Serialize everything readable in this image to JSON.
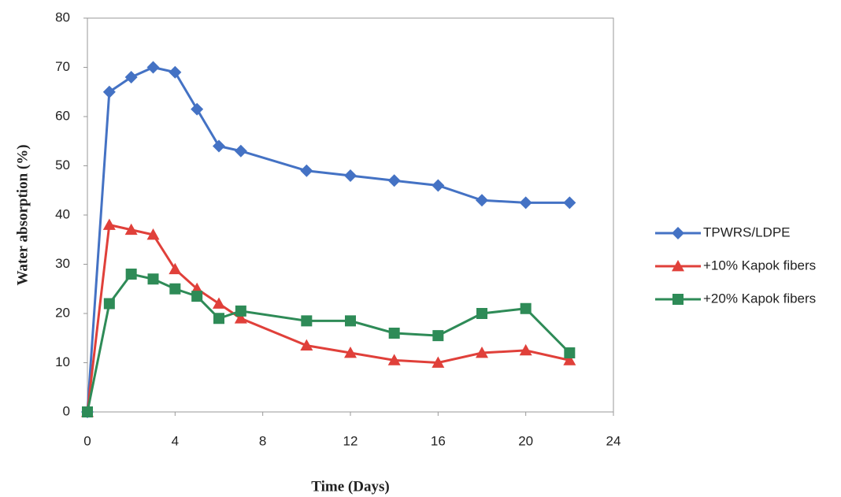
{
  "chart_data": {
    "type": "line",
    "x_label": "Time (Days)",
    "y_label": "Water absorption (%)",
    "x": [
      0,
      1,
      2,
      3,
      4,
      5,
      6,
      7,
      10,
      12,
      14,
      16,
      18,
      20,
      22
    ],
    "series": [
      {
        "name": "TPWRS/LDPE",
        "color": "#4472c4",
        "marker": "diamond",
        "values": [
          0,
          65,
          68,
          70,
          69,
          61.5,
          54,
          53,
          49,
          48,
          47,
          46,
          43,
          42.5,
          42.5
        ]
      },
      {
        "name": "+10% Kapok fibers",
        "color": "#e0403a",
        "marker": "triangle",
        "values": [
          0,
          38,
          37,
          36,
          29,
          25,
          22,
          19,
          13.5,
          12,
          10.5,
          10,
          12,
          12.5,
          10.5
        ]
      },
      {
        "name": "+20% Kapok fibers",
        "color": "#2e8b57",
        "marker": "square",
        "values": [
          0,
          22,
          28,
          27,
          25,
          23.5,
          19,
          20.5,
          18.5,
          18.5,
          16,
          15.5,
          20,
          21,
          12
        ]
      }
    ],
    "xlim": [
      0,
      24
    ],
    "xticks": [
      0,
      4,
      8,
      12,
      16,
      20,
      24
    ],
    "ylim": [
      0,
      80
    ],
    "yticks": [
      0,
      10,
      20,
      30,
      40,
      50,
      60,
      70,
      80
    ],
    "grid": false,
    "legend": "right"
  }
}
